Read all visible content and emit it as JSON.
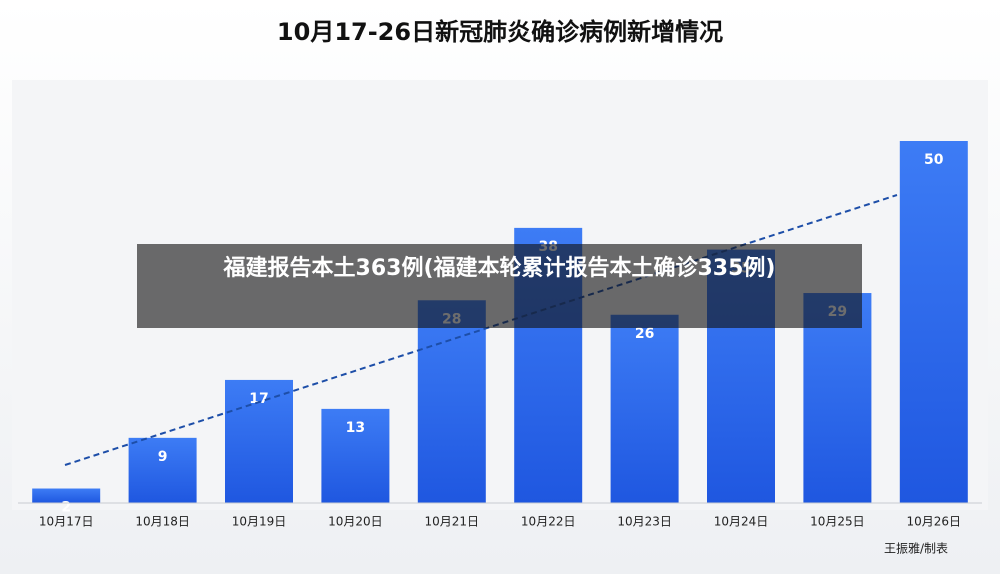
{
  "chart_data": {
    "type": "bar",
    "title": "10月17-26日新冠肺炎确诊病例新增情况",
    "categories": [
      "10月17日",
      "10月18日",
      "10月19日",
      "10月20日",
      "10月21日",
      "10月22日",
      "10月23日",
      "10月24日",
      "10月25日",
      "10月26日"
    ],
    "values": [
      2,
      9,
      17,
      13,
      28,
      38,
      26,
      35,
      29,
      50
    ],
    "color": "#1f57e0",
    "trendline": true,
    "credit": "王振雅/制表"
  },
  "overlay": {
    "caption": "福建报告本土363例(福建本轮累计报告本土确诊335例)"
  }
}
